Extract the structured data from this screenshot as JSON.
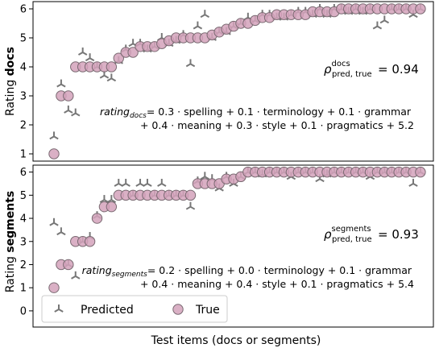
{
  "figure": {
    "xlabel": "Test items (docs or segments)"
  },
  "legend": {
    "predicted_label": "Predicted",
    "true_label": "True"
  },
  "colors": {
    "true_fill": "#d4a2bb",
    "true_edge": "#7a6a72",
    "predicted": "#777777"
  },
  "chart_data": [
    {
      "type": "scatter",
      "panel": "top",
      "ylabel_prefix": "Rating ",
      "ylabel_bold": "docs",
      "ylim": [
        0.75,
        6.25
      ],
      "yticks": [
        1,
        2,
        3,
        4,
        5,
        6
      ],
      "correlation": {
        "symbol": "ρ",
        "superscript": "docs",
        "subscript": "pred, true",
        "value_text": "= 0.94"
      },
      "formula": {
        "lhs": "rating",
        "lhs_sub": "docs",
        "line1": "= 0.3 · spelling + 0.1 · terminology + 0.1 · grammar",
        "line2": "+ 0.4 · meaning + 0.3 · style + 0.1 · pragmatics + 5.2"
      },
      "series": [
        {
          "name": "True",
          "values": [
            1.0,
            3.0,
            3.0,
            4.0,
            4.0,
            4.0,
            4.0,
            4.0,
            4.0,
            4.3,
            4.5,
            4.5,
            4.7,
            4.7,
            4.7,
            4.8,
            4.9,
            5.0,
            5.0,
            5.0,
            5.0,
            5.0,
            5.1,
            5.2,
            5.3,
            5.4,
            5.5,
            5.5,
            5.6,
            5.7,
            5.7,
            5.8,
            5.8,
            5.8,
            5.8,
            5.8,
            5.9,
            5.9,
            5.9,
            5.9,
            6.0,
            6.0,
            6.0,
            6.0,
            6.0,
            6.0,
            6.0,
            6.0,
            6.0,
            6.0,
            6.0,
            6.0
          ]
        },
        {
          "name": "Predicted",
          "values": [
            1.6,
            3.4,
            2.5,
            2.4,
            4.5,
            4.3,
            4.0,
            3.7,
            3.6,
            4.2,
            4.6,
            4.8,
            4.8,
            4.6,
            4.7,
            5.0,
            4.8,
            4.9,
            5.1,
            4.1,
            5.4,
            5.8,
            5.0,
            5.2,
            5.2,
            5.4,
            5.5,
            5.7,
            5.6,
            5.8,
            5.8,
            5.7,
            5.7,
            5.8,
            5.9,
            5.9,
            5.8,
            6.0,
            5.8,
            6.0,
            6.0,
            5.9,
            6.0,
            5.9,
            6.0,
            5.4,
            5.6,
            6.0,
            6.0,
            6.0,
            5.8,
            6.0
          ]
        }
      ]
    },
    {
      "type": "scatter",
      "panel": "bottom",
      "ylabel_prefix": "Rating ",
      "ylabel_bold": "segments",
      "ylim": [
        -0.7,
        6.3
      ],
      "yticks": [
        0,
        1,
        2,
        3,
        4,
        5,
        6
      ],
      "correlation": {
        "symbol": "ρ",
        "superscript": "segments",
        "subscript": "pred, true",
        "value_text": "= 0.93"
      },
      "formula": {
        "lhs": "rating",
        "lhs_sub": "segments",
        "line1": "= 0.2 · spelling + 0.0 · terminology + 0.1 · grammar",
        "line2": "+ 0.4 · meaning + 0.4 · style + 0.1 · pragmatics + 5.4"
      },
      "series": [
        {
          "name": "True",
          "values": [
            1.0,
            2.0,
            2.0,
            3.0,
            3.0,
            3.0,
            4.0,
            4.5,
            4.5,
            5.0,
            5.0,
            5.0,
            5.0,
            5.0,
            5.0,
            5.0,
            5.0,
            5.0,
            5.0,
            5.0,
            5.5,
            5.5,
            5.5,
            5.5,
            5.7,
            5.7,
            5.8,
            6.0,
            6.0,
            6.0,
            6.0,
            6.0,
            6.0,
            6.0,
            6.0,
            6.0,
            6.0,
            6.0,
            6.0,
            6.0,
            6.0,
            6.0,
            6.0,
            6.0,
            6.0,
            6.0,
            6.0,
            6.0,
            6.0,
            6.0,
            6.0,
            6.0
          ]
        },
        {
          "name": "Predicted",
          "values": [
            3.8,
            3.4,
            2.0,
            1.5,
            3.0,
            3.2,
            4.1,
            4.8,
            4.8,
            5.5,
            5.5,
            5.0,
            5.5,
            5.5,
            5.0,
            5.5,
            5.0,
            5.0,
            5.0,
            4.5,
            5.6,
            5.8,
            5.7,
            5.3,
            5.8,
            5.5,
            5.8,
            6.0,
            6.0,
            5.9,
            6.0,
            6.0,
            6.0,
            5.8,
            6.0,
            6.0,
            6.0,
            5.7,
            5.9,
            6.0,
            6.0,
            6.0,
            6.0,
            6.0,
            5.8,
            6.0,
            6.0,
            6.0,
            6.0,
            6.0,
            5.5,
            6.0
          ]
        }
      ]
    }
  ]
}
